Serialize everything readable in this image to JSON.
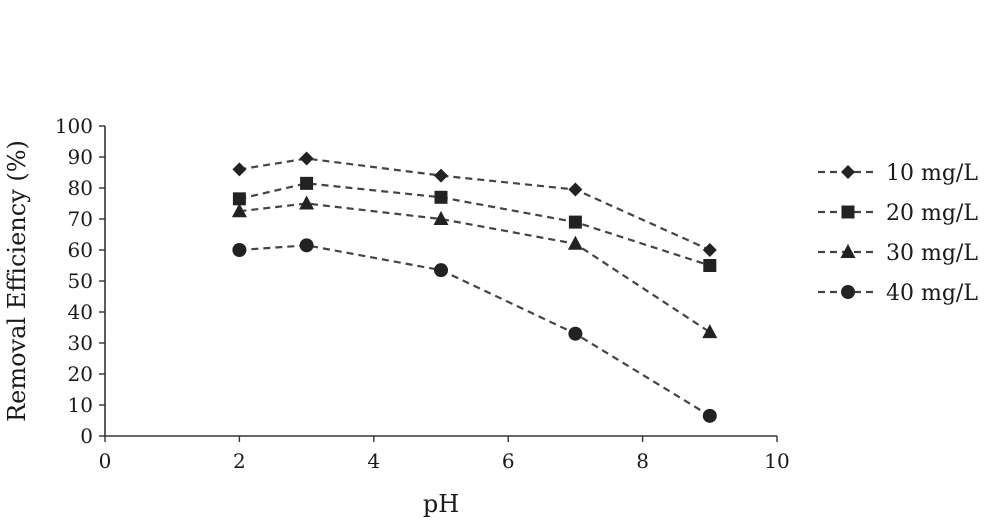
{
  "chart_data": {
    "type": "line",
    "title": "",
    "xlabel": "pH",
    "ylabel": "Removal Efficiency (%)",
    "xlim": [
      0,
      10
    ],
    "ylim": [
      0,
      100
    ],
    "x_ticks": [
      0,
      2,
      4,
      6,
      8,
      10
    ],
    "y_ticks": [
      0,
      10,
      20,
      30,
      40,
      50,
      60,
      70,
      80,
      90,
      100
    ],
    "grid": false,
    "legend_position": "right",
    "line_style": "dashed",
    "color": "#222222",
    "x": [
      2,
      3,
      5,
      7,
      9
    ],
    "series": [
      {
        "name": "10 mg/L",
        "marker": "diamond",
        "values": [
          86,
          89.5,
          84,
          79.5,
          60
        ]
      },
      {
        "name": "20 mg/L",
        "marker": "square",
        "values": [
          76.5,
          81.5,
          77,
          69,
          55
        ]
      },
      {
        "name": "30 mg/L",
        "marker": "triangle",
        "values": [
          72.5,
          75,
          70,
          62,
          33.5
        ]
      },
      {
        "name": "40 mg/L",
        "marker": "circle",
        "values": [
          60,
          61.5,
          53.5,
          33,
          6.5
        ]
      }
    ]
  }
}
